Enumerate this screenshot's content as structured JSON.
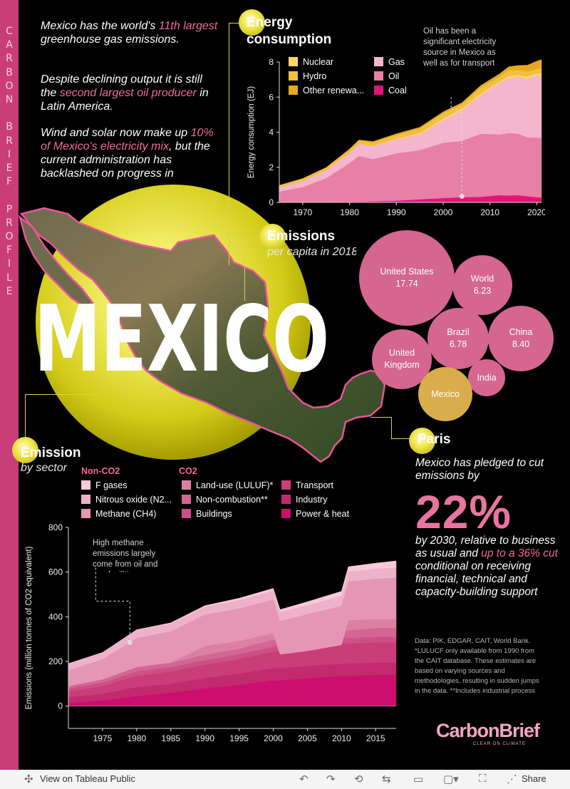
{
  "sidebar": {
    "letters": [
      "C",
      "A",
      "R",
      "B",
      "O",
      "N",
      "",
      "B",
      "R",
      "I",
      "E",
      "F",
      "",
      "P",
      "R",
      "O",
      "F",
      "I",
      "L",
      "E"
    ]
  },
  "intro": {
    "p1": {
      "a": "Mexico has the world's ",
      "hl": "11th largest",
      "b": " greenhouse gas emissions."
    },
    "p2": {
      "a": "Despite declining output it is still the ",
      "hl": "second largest oil producer",
      "b": " in Latin America."
    },
    "p3": {
      "a": "Wind and solar now make up ",
      "hl": "10% of Mexico's electricity mix",
      "b": ", but the current administration has backlashed on progress in"
    }
  },
  "title": "MEXICO",
  "energy": {
    "title_line1": "Energy",
    "title_line2": "consumption",
    "annotation": "Oil has been a significant electricity source in Mexico as well as for transport",
    "legend": [
      {
        "label": "Nuclear",
        "color": "#ffd966"
      },
      {
        "label": "Hydro",
        "color": "#f0c040"
      },
      {
        "label": "Other renewa...",
        "color": "#e8a820"
      },
      {
        "label": "Gas",
        "color": "#f4b6cc"
      },
      {
        "label": "Oil",
        "color": "#e87fa6"
      },
      {
        "label": "Coal",
        "color": "#e0157a"
      }
    ]
  },
  "per_capita": {
    "title": "Emissions",
    "subtitle": "per capita in 2018",
    "bubbles": [
      {
        "name": "United States",
        "value": "17.74",
        "color": "#d4668f"
      },
      {
        "name": "World",
        "value": "6.23",
        "color": "#d4668f"
      },
      {
        "name": "Brazil",
        "value": "6.78",
        "color": "#d4668f"
      },
      {
        "name": "China",
        "value": "8.40",
        "color": "#d4668f"
      },
      {
        "name": "United Kingdom",
        "value": "",
        "color": "#d4668f"
      },
      {
        "name": "India",
        "value": "",
        "color": "#d4668f"
      },
      {
        "name": "Mexico",
        "value": "",
        "color": "#d9ad4c"
      }
    ]
  },
  "paris": {
    "title": "Paris",
    "lead": "Mexico has pledged to cut emissions by",
    "big": "22%",
    "body_a": "by 2030, relative to business as usual and ",
    "body_hl": "up to a 36% cut",
    "body_b": " conditional on receiving financial, technical and capacity-building support"
  },
  "sector": {
    "title": "Emission",
    "subtitle": "by sector",
    "nonco2_head": "Non-CO2",
    "co2_head": "CO2",
    "legend": [
      {
        "label": "F gases",
        "color": "#f7c9d9"
      },
      {
        "label": "Nitrous oxide (N2...",
        "color": "#efb1c8"
      },
      {
        "label": "Methane (CH4)",
        "color": "#e596b4"
      },
      {
        "label": "Land-use (LULUF)*",
        "color": "#dc80a3"
      },
      {
        "label": "Non-combustion**",
        "color": "#d46692"
      },
      {
        "label": "Buildings",
        "color": "#cc5086"
      },
      {
        "label": "Transport",
        "color": "#c93d79"
      },
      {
        "label": "Industry",
        "color": "#c22a6d"
      },
      {
        "label": "Power & heat",
        "color": "#cc0e6e"
      }
    ],
    "annotation": "High methane emissions largely come from oil and gas facilities"
  },
  "source_note": "Data: PIK, EDGAR, CAIT, World Bank. *LULUCF only available from 1990 from the CAIT database. These estimates are based on varying sources and methodologies, resulting in sudden jumps in the data. **Includes industrial process",
  "logo": {
    "name": "CarbonBrief",
    "tagline": "CLEAR ON CLIMATE"
  },
  "footer": {
    "view_label": "View on Tableau Public",
    "share_label": "Share"
  },
  "chart_data": [
    {
      "type": "area",
      "title": "Energy consumption",
      "ylabel": "Energy consumption (EJ)",
      "xlabel": "",
      "ylim": [
        0,
        8
      ],
      "xlim": [
        1965,
        2021
      ],
      "yticks": [
        0,
        2,
        4,
        6,
        8
      ],
      "xticks": [
        1970,
        1980,
        1990,
        2000,
        2010,
        2020
      ],
      "legend_position": "top-left",
      "x": [
        1965,
        1970,
        1975,
        1980,
        1982,
        1985,
        1990,
        1995,
        2000,
        2004,
        2008,
        2012,
        2014,
        2016,
        2018,
        2020,
        2021
      ],
      "series": [
        {
          "name": "Coal",
          "color": "#e0157a",
          "values": [
            0.02,
            0.03,
            0.03,
            0.04,
            0.05,
            0.07,
            0.1,
            0.18,
            0.25,
            0.3,
            0.32,
            0.42,
            0.4,
            0.42,
            0.35,
            0.3,
            0.28
          ]
        },
        {
          "name": "Oil",
          "color": "#e87fa6",
          "values": [
            0.6,
            0.85,
            1.35,
            2.2,
            2.6,
            2.4,
            2.7,
            2.8,
            3.15,
            3.2,
            3.6,
            3.45,
            3.55,
            3.5,
            3.35,
            3.4,
            3.4
          ]
        },
        {
          "name": "Gas",
          "color": "#f4b6cc",
          "values": [
            0.25,
            0.35,
            0.45,
            0.6,
            0.7,
            0.75,
            0.8,
            0.9,
            1.3,
            1.75,
            2.2,
            2.95,
            3.15,
            3.25,
            3.35,
            3.55,
            3.55
          ]
        },
        {
          "name": "Nuclear",
          "color": "#ffd966",
          "values": [
            0.0,
            0.0,
            0.0,
            0.0,
            0.0,
            0.0,
            0.03,
            0.08,
            0.08,
            0.1,
            0.09,
            0.08,
            0.1,
            0.1,
            0.12,
            0.1,
            0.11
          ]
        },
        {
          "name": "Hydro",
          "color": "#f0c040",
          "values": [
            0.1,
            0.13,
            0.15,
            0.18,
            0.18,
            0.2,
            0.22,
            0.25,
            0.3,
            0.25,
            0.35,
            0.28,
            0.35,
            0.28,
            0.3,
            0.25,
            0.32
          ]
        },
        {
          "name": "Other renewa...",
          "color": "#e8a820",
          "values": [
            0.0,
            0.0,
            0.01,
            0.02,
            0.03,
            0.05,
            0.06,
            0.07,
            0.08,
            0.08,
            0.1,
            0.14,
            0.18,
            0.25,
            0.35,
            0.45,
            0.48
          ]
        }
      ]
    },
    {
      "type": "bubble",
      "title": "Emissions",
      "subtitle": "per capita in 2018",
      "categories": [
        "United States",
        "World",
        "Brazil",
        "China",
        "United Kingdom",
        "India",
        "Mexico"
      ],
      "values": [
        17.74,
        6.23,
        6.78,
        8.4,
        7.8,
        3.2,
        5.8
      ]
    },
    {
      "type": "area",
      "title": "Emission",
      "subtitle": "by sector",
      "ylabel": "Emissions (million tonnes of CO2 equivalent)",
      "xlabel": "",
      "ylim": [
        -100,
        800
      ],
      "xlim": [
        1970,
        2018
      ],
      "yticks": [
        0,
        200,
        400,
        600,
        800
      ],
      "xticks": [
        1975,
        1980,
        1985,
        1990,
        1995,
        2000,
        2005,
        2010,
        2015
      ],
      "x": [
        1970,
        1975,
        1980,
        1985,
        1990,
        1995,
        2000,
        2001,
        2005,
        2010,
        2011,
        2015,
        2018
      ],
      "series": [
        {
          "name": "Power & heat",
          "color": "#cc0e6e",
          "values": [
            15,
            25,
            45,
            60,
            80,
            95,
            115,
            115,
            125,
            135,
            135,
            140,
            140
          ]
        },
        {
          "name": "Industry",
          "color": "#c22a6d",
          "values": [
            25,
            30,
            40,
            40,
            45,
            50,
            55,
            55,
            55,
            55,
            55,
            55,
            55
          ]
        },
        {
          "name": "Transport",
          "color": "#c93d79",
          "values": [
            25,
            35,
            50,
            55,
            60,
            65,
            75,
            75,
            80,
            90,
            90,
            90,
            90
          ]
        },
        {
          "name": "Buildings",
          "color": "#cc5086",
          "values": [
            15,
            15,
            20,
            20,
            20,
            22,
            22,
            22,
            22,
            24,
            24,
            25,
            25
          ]
        },
        {
          "name": "Non-combustion**",
          "color": "#d46692",
          "values": [
            10,
            15,
            20,
            20,
            25,
            25,
            30,
            30,
            30,
            35,
            35,
            40,
            40
          ]
        },
        {
          "name": "Land-use (LULUF)*",
          "color": "#dc80a3",
          "values": [
            0,
            0,
            0,
            0,
            40,
            35,
            30,
            -65,
            -65,
            -65,
            45,
            40,
            40
          ]
        },
        {
          "name": "Methane (CH4)",
          "color": "#e596b4",
          "values": [
            70,
            90,
            130,
            140,
            140,
            145,
            150,
            150,
            165,
            175,
            175,
            180,
            185
          ]
        },
        {
          "name": "Nitrous oxide (N2...",
          "color": "#efb1c8",
          "values": [
            30,
            30,
            35,
            35,
            35,
            38,
            40,
            40,
            40,
            45,
            45,
            45,
            45
          ]
        },
        {
          "name": "F gases",
          "color": "#f7c9d9",
          "values": [
            0,
            0,
            2,
            3,
            5,
            8,
            10,
            10,
            15,
            20,
            20,
            25,
            30
          ]
        }
      ]
    }
  ]
}
